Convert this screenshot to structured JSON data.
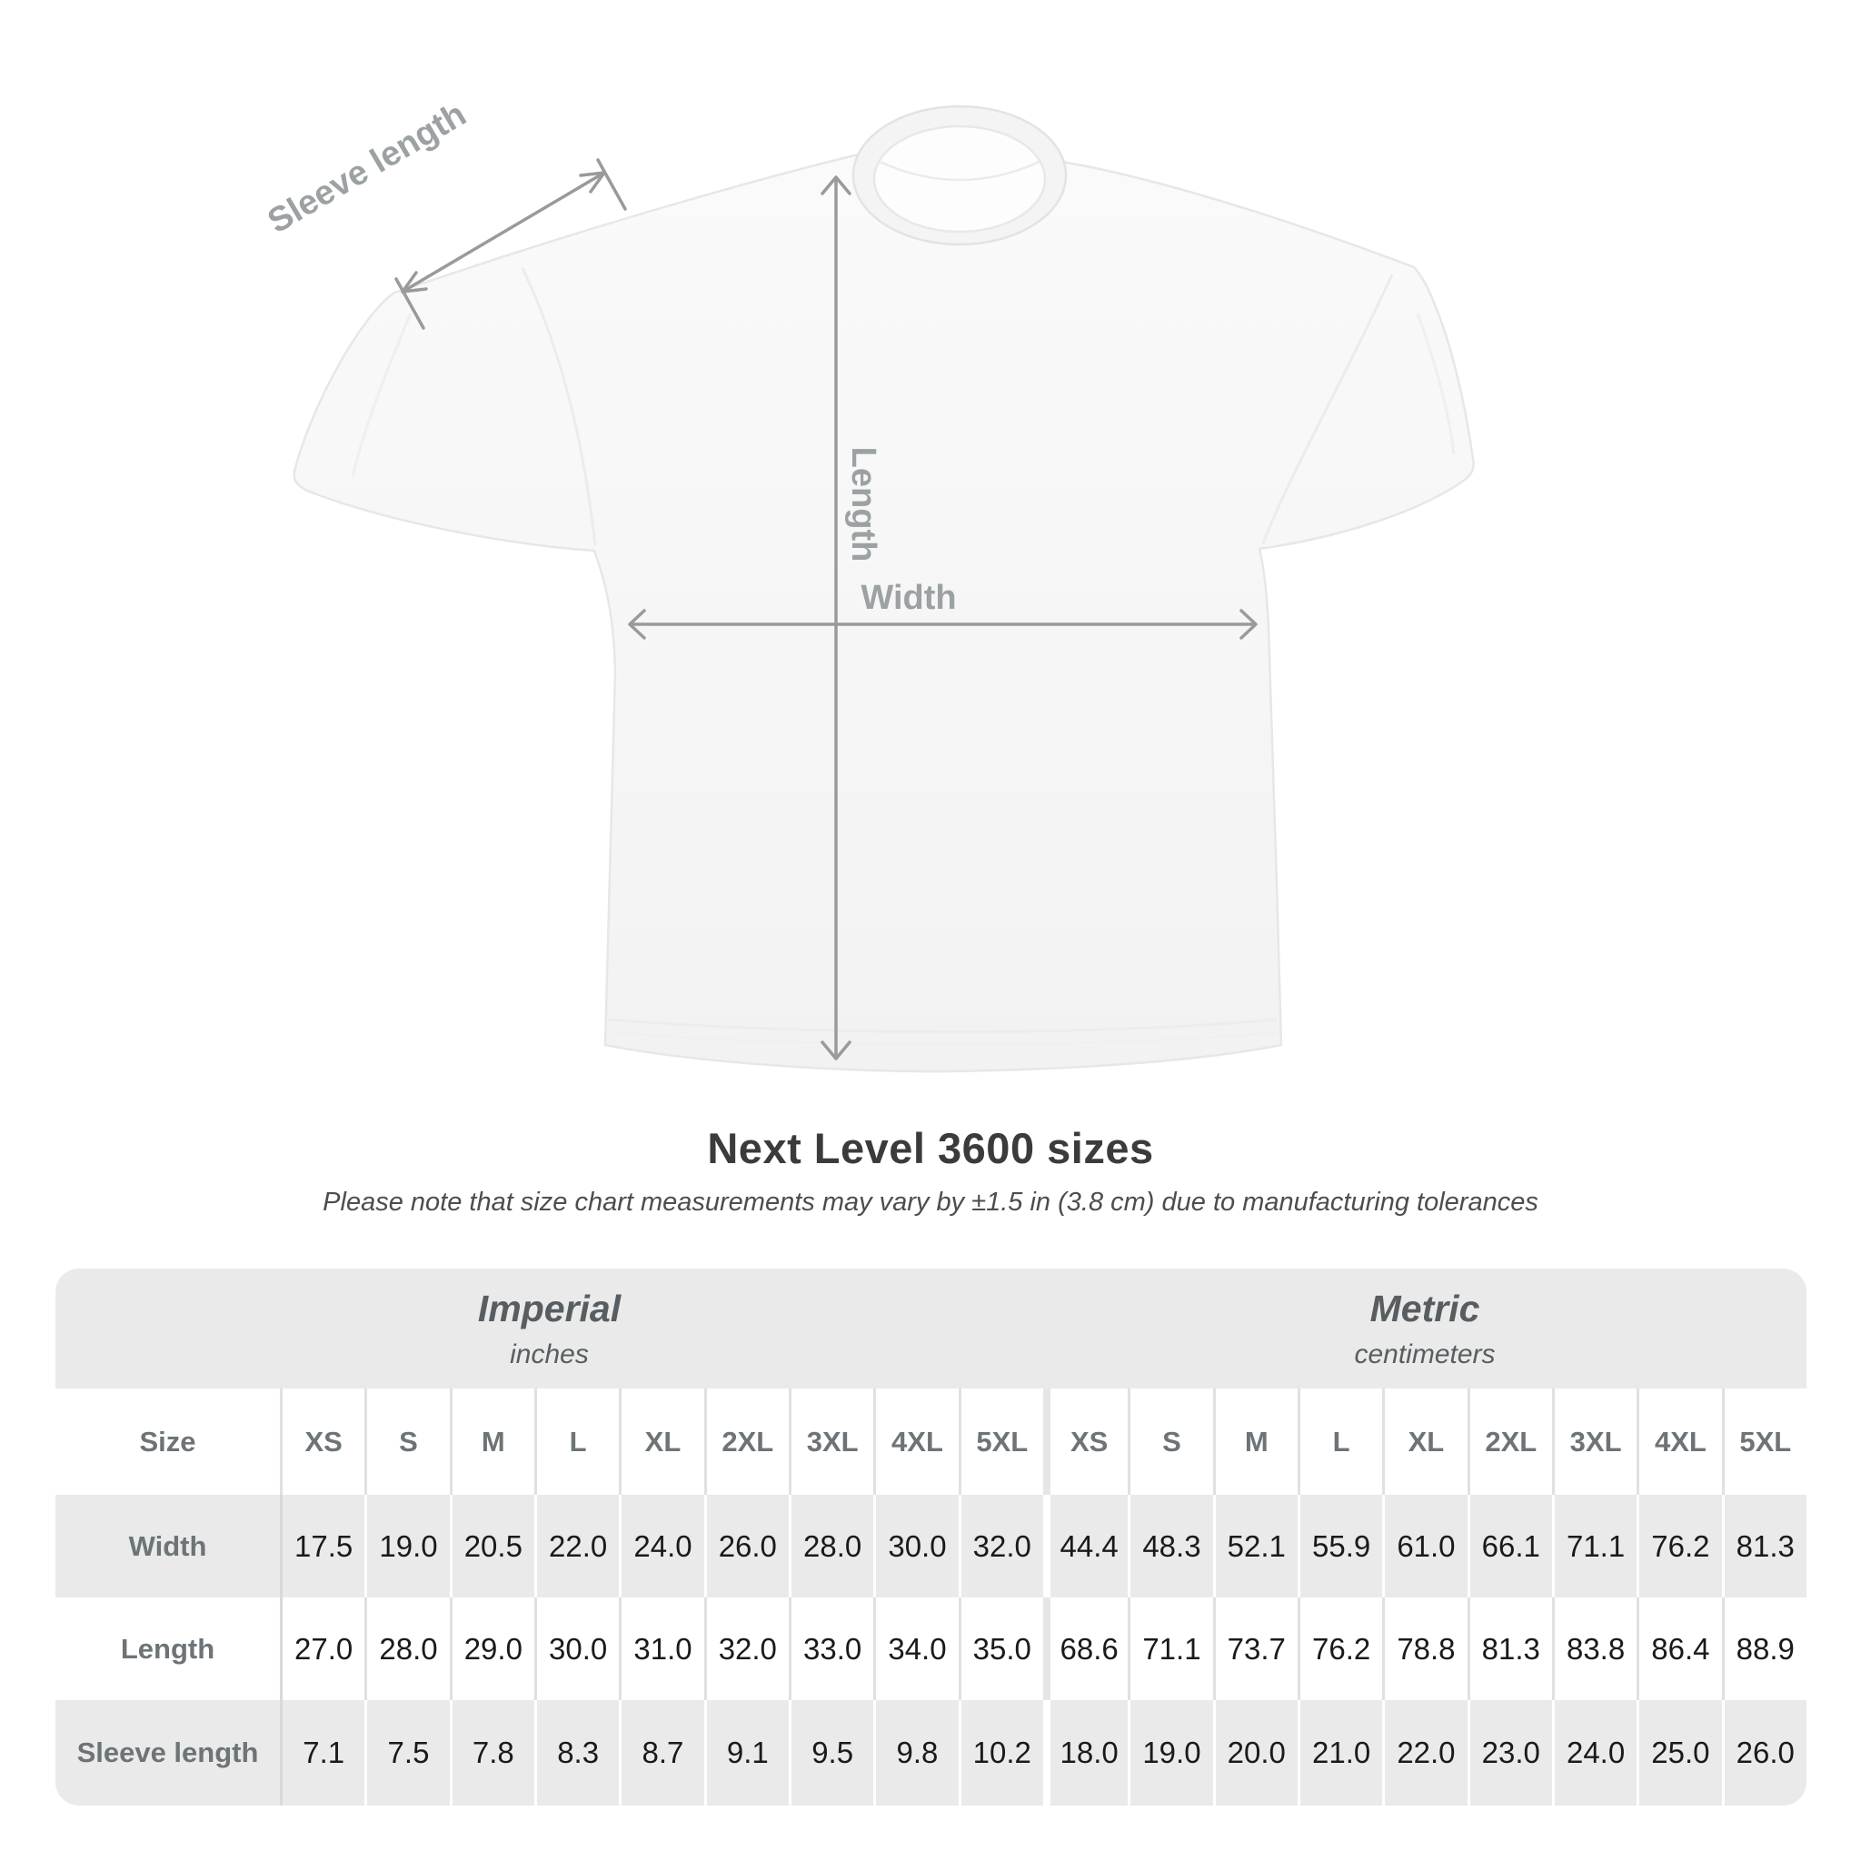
{
  "diagram": {
    "sleeve_label": "Sleeve length",
    "length_label": "Length",
    "width_label": "Width"
  },
  "heading": {
    "title": "Next Level 3600 sizes",
    "subtitle": "Please note that size chart measurements may vary by ±1.5 in (3.8 cm) due to manufacturing tolerances"
  },
  "table": {
    "size_label": "Size",
    "sections": [
      {
        "name": "Imperial",
        "unit": "inches"
      },
      {
        "name": "Metric",
        "unit": "centimeters"
      }
    ],
    "sizes": [
      "XS",
      "S",
      "M",
      "L",
      "XL",
      "2XL",
      "3XL",
      "4XL",
      "5XL"
    ],
    "rows": [
      {
        "label": "Width",
        "imperial": [
          "17.5",
          "19.0",
          "20.5",
          "22.0",
          "24.0",
          "26.0",
          "28.0",
          "30.0",
          "32.0"
        ],
        "metric": [
          "44.4",
          "48.3",
          "52.1",
          "55.9",
          "61.0",
          "66.1",
          "71.1",
          "76.2",
          "81.3"
        ]
      },
      {
        "label": "Length",
        "imperial": [
          "27.0",
          "28.0",
          "29.0",
          "30.0",
          "31.0",
          "32.0",
          "33.0",
          "34.0",
          "35.0"
        ],
        "metric": [
          "68.6",
          "71.1",
          "73.7",
          "76.2",
          "78.8",
          "81.3",
          "83.8",
          "86.4",
          "88.9"
        ]
      },
      {
        "label": "Sleeve length",
        "imperial": [
          "7.1",
          "7.5",
          "7.8",
          "8.3",
          "8.7",
          "9.1",
          "9.5",
          "9.8",
          "10.2"
        ],
        "metric": [
          "18.0",
          "19.0",
          "20.0",
          "21.0",
          "22.0",
          "23.0",
          "24.0",
          "25.0",
          "26.0"
        ]
      }
    ]
  },
  "colors": {
    "band_gray": "#e9eae9",
    "label_text": "#6d7478",
    "value_text": "#1a1a1a",
    "dimension_line": "#9a9a9a",
    "dimension_label": "#9ca1a3",
    "title_text": "#3b3b3b"
  }
}
